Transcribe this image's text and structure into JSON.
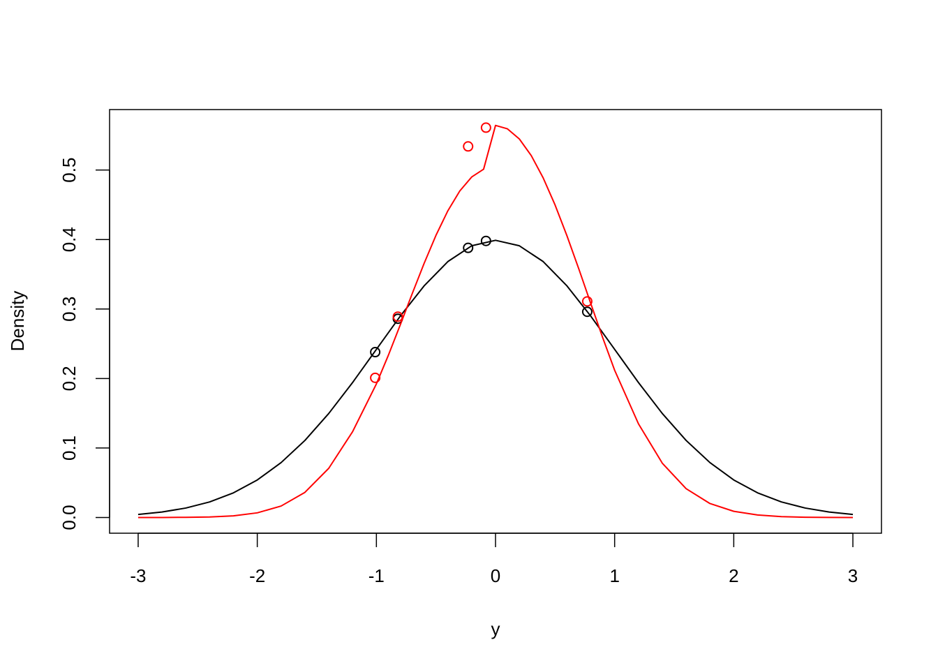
{
  "chart_data": {
    "type": "line",
    "title": "",
    "xlabel": "y",
    "ylabel": "Density",
    "xlim": [
      -3.24,
      3.24
    ],
    "ylim": [
      -0.0226,
      0.587
    ],
    "grid": false,
    "legend": "none",
    "xticks": [
      -3,
      -2,
      -1,
      0,
      1,
      2,
      3
    ],
    "xtick_labels": [
      "-3",
      "-2",
      "-1",
      "0",
      "1",
      "2",
      "3"
    ],
    "yticks": [
      0.0,
      0.1,
      0.2,
      0.3,
      0.4,
      0.5
    ],
    "ytick_labels": [
      "0.0",
      "0.1",
      "0.2",
      "0.3",
      "0.4",
      "0.5"
    ],
    "series": [
      {
        "color": "#000000",
        "x": [
          -3.0,
          -2.8,
          -2.6,
          -2.4,
          -2.2,
          -2.0,
          -1.8,
          -1.6,
          -1.4,
          -1.2,
          -1.0,
          -0.8,
          -0.6,
          -0.4,
          -0.2,
          0.0,
          0.2,
          0.4,
          0.6,
          0.8,
          1.0,
          1.2,
          1.4,
          1.6,
          1.8,
          2.0,
          2.2,
          2.4,
          2.6,
          2.8,
          3.0
        ],
        "y": [
          0.0044,
          0.0079,
          0.0136,
          0.0224,
          0.0355,
          0.054,
          0.079,
          0.1109,
          0.1497,
          0.1942,
          0.242,
          0.2897,
          0.3332,
          0.3683,
          0.391,
          0.3989,
          0.391,
          0.3683,
          0.3332,
          0.2897,
          0.242,
          0.1942,
          0.1497,
          0.1109,
          0.079,
          0.054,
          0.0355,
          0.0224,
          0.0136,
          0.0079,
          0.0044
        ],
        "points": {
          "x": [
            -1.01,
            -0.82,
            -0.23,
            -0.08,
            0.77
          ],
          "y": [
            0.238,
            0.286,
            0.388,
            0.398,
            0.296
          ]
        }
      },
      {
        "color": "#ff0000",
        "x": [
          -3.0,
          -2.8,
          -2.6,
          -2.4,
          -2.2,
          -2.0,
          -1.8,
          -1.6,
          -1.4,
          -1.2,
          -1.0,
          -0.9,
          -0.8,
          -0.7,
          -0.6,
          -0.5,
          -0.4,
          -0.3,
          -0.2,
          -0.1,
          0.0,
          0.1,
          0.2,
          0.3,
          0.4,
          0.5,
          0.6,
          0.7,
          0.8,
          0.9,
          1.0,
          1.2,
          1.4,
          1.6,
          1.8,
          2.0,
          2.2,
          2.4,
          2.6,
          2.8,
          3.0
        ],
        "y": [
          0.0,
          0.0,
          0.0003,
          0.0008,
          0.0024,
          0.0067,
          0.0165,
          0.0362,
          0.0708,
          0.1235,
          0.1923,
          0.2333,
          0.2771,
          0.3218,
          0.3654,
          0.406,
          0.4414,
          0.4699,
          0.49,
          0.5012,
          0.5642,
          0.5593,
          0.5447,
          0.5208,
          0.4887,
          0.4497,
          0.4052,
          0.3573,
          0.3077,
          0.2587,
          0.2119,
          0.1348,
          0.0782,
          0.0415,
          0.0201,
          0.0089,
          0.0036,
          0.0013,
          0.0004,
          0.0001,
          0.0
        ],
        "points": {
          "x": [
            -1.01,
            -0.82,
            -0.23,
            -0.08,
            0.77
          ],
          "y": [
            0.201,
            0.289,
            0.534,
            0.561,
            0.311
          ]
        }
      }
    ]
  }
}
